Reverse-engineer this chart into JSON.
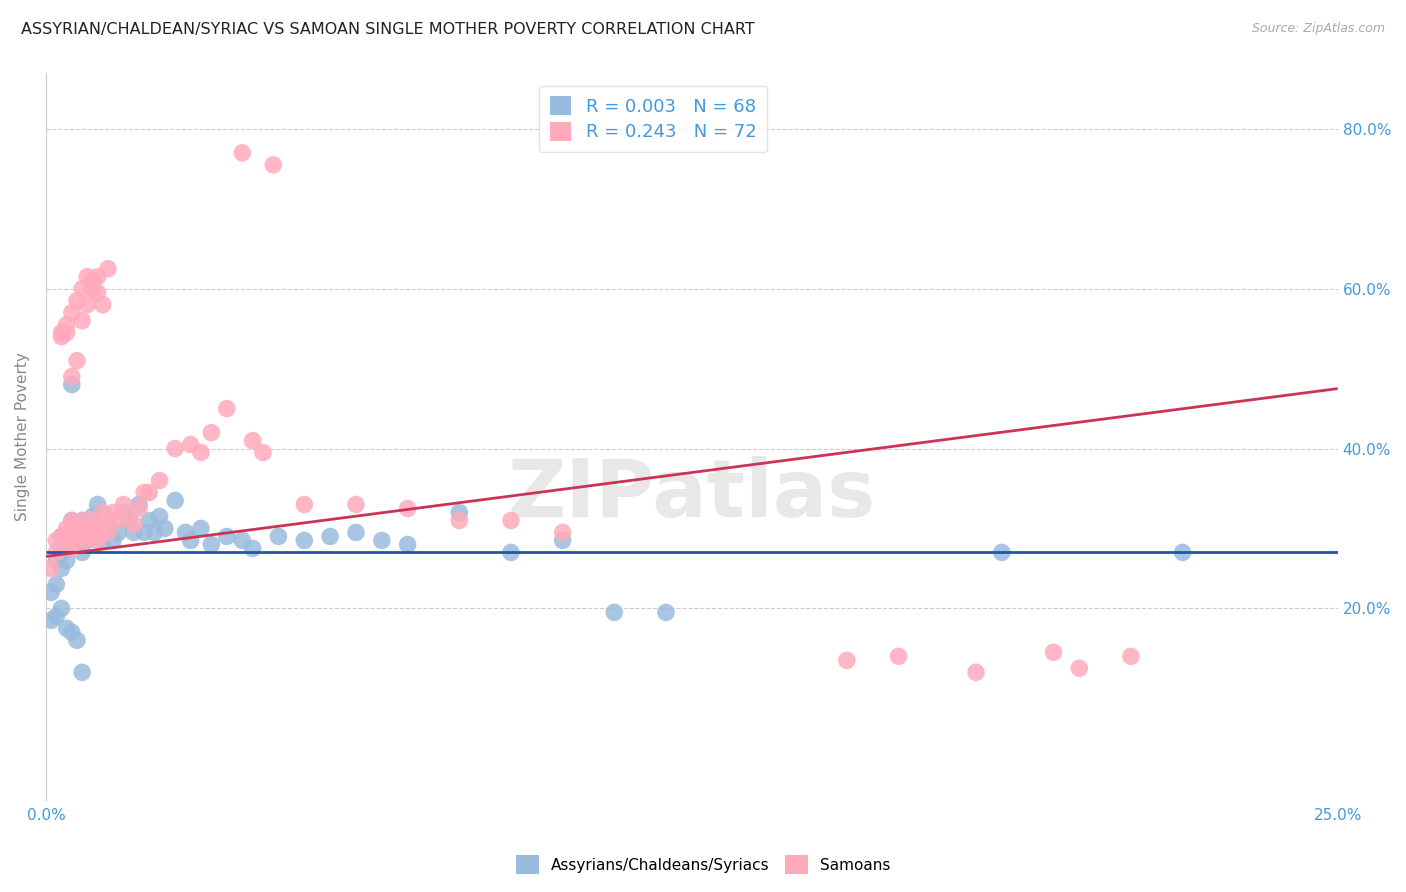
{
  "title": "ASSYRIAN/CHALDEAN/SYRIAC VS SAMOAN SINGLE MOTHER POVERTY CORRELATION CHART",
  "source": "Source: ZipAtlas.com",
  "ylabel": "Single Mother Poverty",
  "legend_label1": "Assyrians/Chaldeans/Syriacs",
  "legend_label2": "Samoans",
  "xlim": [
    0.0,
    0.25
  ],
  "ylim": [
    -0.04,
    0.87
  ],
  "y_tick_vals": [
    0.2,
    0.4,
    0.6,
    0.8
  ],
  "y_tick_labels": [
    "20.0%",
    "40.0%",
    "60.0%",
    "80.0%"
  ],
  "x_tick_labels": [
    "0.0%",
    "25.0%"
  ],
  "x_tick_vals": [
    0.0,
    0.25
  ],
  "blue_color": "#99bbdd",
  "pink_color": "#ffaabb",
  "trend_blue": "#2255aa",
  "trend_pink": "#cc3355",
  "background_color": "#ffffff",
  "grid_color": "#cccccc",
  "R1": 0.003,
  "N1": 68,
  "R2": 0.243,
  "N2": 72,
  "watermark_text": "ZIPatlas",
  "title_fontsize": 11.5,
  "tick_label_color": "#4499dd",
  "axis_label_color": "#888888",
  "source_color": "#aaaaaa",
  "legend_text_color": "#4499dd",
  "blue_trend_y0": 0.27,
  "blue_trend_y1": 0.27,
  "pink_trend_y0": 0.265,
  "pink_trend_y1": 0.475,
  "assyrian_x": [
    0.001,
    0.002,
    0.002,
    0.003,
    0.003,
    0.003,
    0.004,
    0.004,
    0.004,
    0.005,
    0.005,
    0.005,
    0.006,
    0.006,
    0.006,
    0.007,
    0.007,
    0.007,
    0.008,
    0.008,
    0.009,
    0.009,
    0.01,
    0.01,
    0.011,
    0.011,
    0.012,
    0.012,
    0.013,
    0.014,
    0.015,
    0.016,
    0.017,
    0.018,
    0.019,
    0.02,
    0.021,
    0.022,
    0.023,
    0.025,
    0.027,
    0.028,
    0.03,
    0.032,
    0.035,
    0.038,
    0.04,
    0.045,
    0.05,
    0.055,
    0.06,
    0.065,
    0.07,
    0.08,
    0.09,
    0.1,
    0.11,
    0.12,
    0.001,
    0.002,
    0.003,
    0.004,
    0.005,
    0.006,
    0.007,
    0.185,
    0.22,
    0.005
  ],
  "assyrian_y": [
    0.22,
    0.23,
    0.26,
    0.25,
    0.27,
    0.29,
    0.26,
    0.275,
    0.28,
    0.275,
    0.285,
    0.31,
    0.295,
    0.305,
    0.28,
    0.27,
    0.3,
    0.31,
    0.285,
    0.3,
    0.29,
    0.315,
    0.295,
    0.33,
    0.285,
    0.3,
    0.31,
    0.295,
    0.285,
    0.295,
    0.32,
    0.31,
    0.295,
    0.33,
    0.295,
    0.31,
    0.295,
    0.315,
    0.3,
    0.335,
    0.295,
    0.285,
    0.3,
    0.28,
    0.29,
    0.285,
    0.275,
    0.29,
    0.285,
    0.29,
    0.295,
    0.285,
    0.28,
    0.32,
    0.27,
    0.285,
    0.195,
    0.195,
    0.185,
    0.19,
    0.2,
    0.175,
    0.17,
    0.16,
    0.12,
    0.27,
    0.27,
    0.48
  ],
  "samoan_x": [
    0.001,
    0.002,
    0.002,
    0.003,
    0.003,
    0.004,
    0.004,
    0.005,
    0.005,
    0.005,
    0.006,
    0.006,
    0.007,
    0.007,
    0.008,
    0.008,
    0.009,
    0.009,
    0.01,
    0.01,
    0.011,
    0.011,
    0.012,
    0.012,
    0.013,
    0.014,
    0.015,
    0.016,
    0.017,
    0.018,
    0.019,
    0.02,
    0.022,
    0.025,
    0.028,
    0.03,
    0.032,
    0.035,
    0.04,
    0.042,
    0.003,
    0.004,
    0.005,
    0.006,
    0.007,
    0.008,
    0.009,
    0.01,
    0.011,
    0.012,
    0.038,
    0.044,
    0.05,
    0.06,
    0.07,
    0.08,
    0.09,
    0.1,
    0.155,
    0.165,
    0.18,
    0.195,
    0.2,
    0.21,
    0.003,
    0.004,
    0.005,
    0.006,
    0.007,
    0.008,
    0.009,
    0.01
  ],
  "samoan_y": [
    0.25,
    0.27,
    0.285,
    0.275,
    0.29,
    0.285,
    0.3,
    0.295,
    0.275,
    0.31,
    0.285,
    0.3,
    0.29,
    0.31,
    0.285,
    0.3,
    0.295,
    0.31,
    0.285,
    0.295,
    0.3,
    0.32,
    0.31,
    0.295,
    0.32,
    0.31,
    0.33,
    0.315,
    0.305,
    0.325,
    0.345,
    0.345,
    0.36,
    0.4,
    0.405,
    0.395,
    0.42,
    0.45,
    0.41,
    0.395,
    0.545,
    0.555,
    0.49,
    0.51,
    0.56,
    0.58,
    0.6,
    0.615,
    0.58,
    0.625,
    0.77,
    0.755,
    0.33,
    0.33,
    0.325,
    0.31,
    0.31,
    0.295,
    0.135,
    0.14,
    0.12,
    0.145,
    0.125,
    0.14,
    0.54,
    0.545,
    0.57,
    0.585,
    0.6,
    0.615,
    0.61,
    0.595
  ]
}
